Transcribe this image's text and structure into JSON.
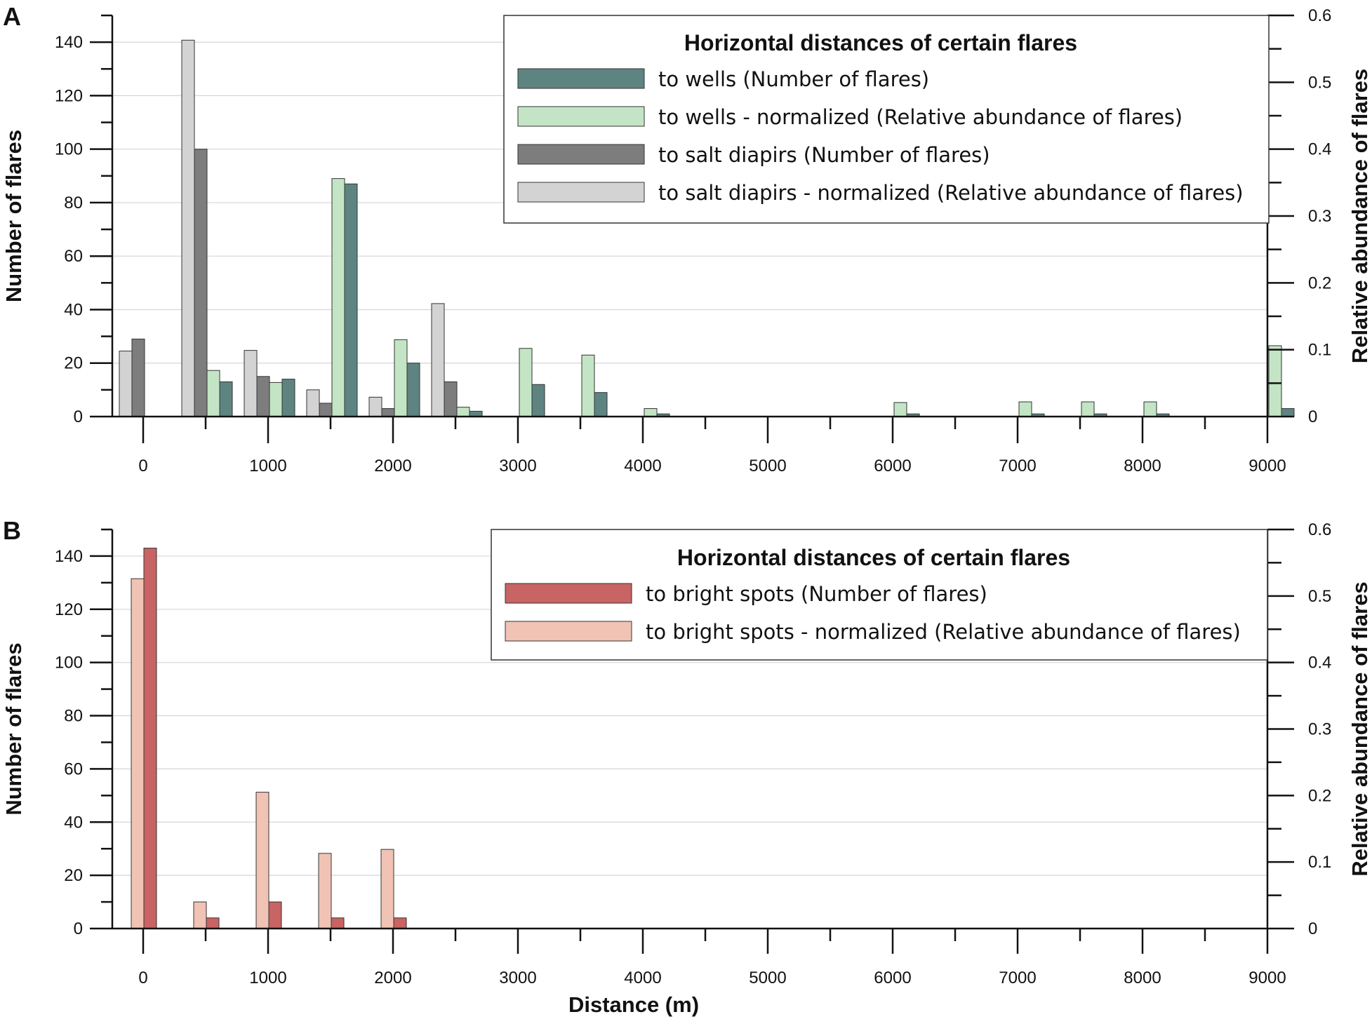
{
  "chart_data": [
    {
      "panel": "A",
      "type": "bar",
      "xlabel": "",
      "ylabel": "Number of flares",
      "ylabel_right": "Relative abundance of flares",
      "xlim": [
        0,
        9000
      ],
      "ylim": [
        0,
        150
      ],
      "ylim_right": [
        0,
        0.6
      ],
      "x_ticks": [
        "0",
        "1000",
        "2000",
        "3000",
        "4000",
        "5000",
        "6000",
        "7000",
        "8000",
        "9000"
      ],
      "y_ticks": [
        "0",
        "20",
        "40",
        "60",
        "80",
        "100",
        "120",
        "140"
      ],
      "y_ticks_right": [
        "0",
        "0.1",
        "0.2",
        "0.3",
        "0.4",
        "0.5",
        "0.6"
      ],
      "legend": {
        "title": "Horizontal distances of certain flares",
        "placement": "top-right"
      },
      "series": [
        {
          "key": "wells",
          "name": "to wells (Number of flares)",
          "axis": "left",
          "color": "#5e8482",
          "x": [
            500,
            1000,
            1500,
            2000,
            2500,
            3000,
            3500,
            4000,
            6000,
            7000,
            7500,
            8000,
            9000
          ],
          "values": [
            13,
            14,
            87,
            20,
            2,
            12,
            9,
            1,
            1,
            1,
            1,
            1,
            3
          ]
        },
        {
          "key": "wells_norm",
          "name": "to wells - normalized (Relative abundance of flares)",
          "axis": "right",
          "color": "#c3e5c5",
          "x": [
            500,
            1000,
            1500,
            2000,
            2500,
            3000,
            3500,
            4000,
            6000,
            7000,
            7500,
            8000,
            9000
          ],
          "values": [
            0.069,
            0.051,
            0.356,
            0.115,
            0.014,
            0.102,
            0.092,
            0.012,
            0.021,
            0.022,
            0.022,
            0.022,
            0.106
          ]
        },
        {
          "key": "salt",
          "name": "to salt diapirs (Number of flares)",
          "axis": "left",
          "color": "#7d7d7d",
          "x": [
            0,
            500,
            1000,
            1500,
            2000,
            2500
          ],
          "values": [
            29,
            100,
            15,
            5,
            3,
            13
          ]
        },
        {
          "key": "salt_norm",
          "name": "to salt diapirs - normalized (Relative abundance of flares)",
          "axis": "right",
          "color": "#d3d3d3",
          "x": [
            0,
            500,
            1000,
            1500,
            2000,
            2500
          ],
          "values": [
            0.098,
            0.563,
            0.099,
            0.04,
            0.029,
            0.169
          ]
        }
      ]
    },
    {
      "panel": "B",
      "type": "bar",
      "xlabel": "Distance (m)",
      "ylabel": "Number of flares",
      "ylabel_right": "Relative abundance of flares",
      "xlim": [
        0,
        9000
      ],
      "ylim": [
        0,
        150
      ],
      "ylim_right": [
        0,
        0.6
      ],
      "x_ticks": [
        "0",
        "1000",
        "2000",
        "3000",
        "4000",
        "5000",
        "6000",
        "7000",
        "8000",
        "9000"
      ],
      "y_ticks": [
        "0",
        "20",
        "40",
        "60",
        "80",
        "100",
        "120",
        "140"
      ],
      "y_ticks_right": [
        "0",
        "0.1",
        "0.2",
        "0.3",
        "0.4",
        "0.5",
        "0.6"
      ],
      "legend": {
        "title": "Horizontal distances of certain flares",
        "placement": "top-right"
      },
      "series": [
        {
          "key": "bright",
          "name": "to bright spots (Number of flares)",
          "axis": "left",
          "color": "#c86464",
          "x": [
            0,
            500,
            1000,
            1500,
            2000
          ],
          "values": [
            143,
            4,
            10,
            4,
            4
          ]
        },
        {
          "key": "bright_norm",
          "name": "to bright spots - normalized (Relative abundance of flares)",
          "axis": "right",
          "color": "#f0c3b5",
          "x": [
            0,
            500,
            1000,
            1500,
            2000
          ],
          "values": [
            0.526,
            0.04,
            0.205,
            0.113,
            0.119
          ]
        }
      ]
    }
  ]
}
